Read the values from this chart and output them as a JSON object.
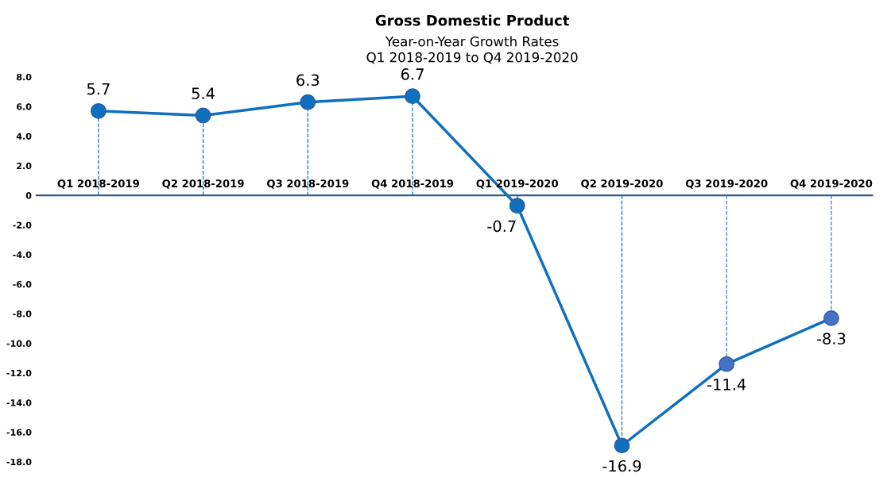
{
  "chart_data": {
    "type": "line",
    "title": "Gross Domestic Product",
    "subtitle": "Year-on-Year Growth Rates\nQ1 2018-2019 to Q4 2019-2020",
    "categories": [
      "Q1 2018-2019",
      "Q2 2018-2019",
      "Q3 2018-2019",
      "Q4 2018-2019",
      "Q1 2019-2020",
      "Q2 2019-2020",
      "Q3 2019-2020",
      "Q4 2019-2020"
    ],
    "series": [
      {
        "color": "#0f70bf",
        "colors": [
          "#0f70bf",
          "#0f70bf",
          "#0f70bf",
          "#0f70bf",
          "#0f70bf",
          "#0f70bf",
          "#4472c4",
          "#4472c4"
        ],
        "values": [
          5.7,
          5.4,
          6.3,
          6.7,
          -0.7,
          -16.9,
          -11.4,
          -8.3
        ]
      }
    ],
    "ylim": [
      -18,
      8
    ],
    "yticks": [
      {
        "value": 8,
        "label": "8.0"
      },
      {
        "value": 6,
        "label": "6.0"
      },
      {
        "value": 4,
        "label": "4.0"
      },
      {
        "value": 2,
        "label": "2.0"
      },
      0,
      {
        "value": -2,
        "label": "-2.0"
      },
      {
        "value": -4,
        "label": "-4.0"
      },
      {
        "value": -6,
        "label": "-6.0"
      },
      {
        "value": -8,
        "label": "-8.0"
      },
      {
        "value": -10,
        "label": "-10.0"
      },
      {
        "value": -12,
        "label": "-12.0"
      },
      {
        "value": -14,
        "label": "-14.0"
      },
      {
        "value": -16,
        "label": "-16.0"
      },
      {
        "value": -18,
        "label": "-18.0"
      }
    ],
    "data_labels": true,
    "marker": "circle",
    "line_style": "solid",
    "grid": false,
    "legend": false
  }
}
